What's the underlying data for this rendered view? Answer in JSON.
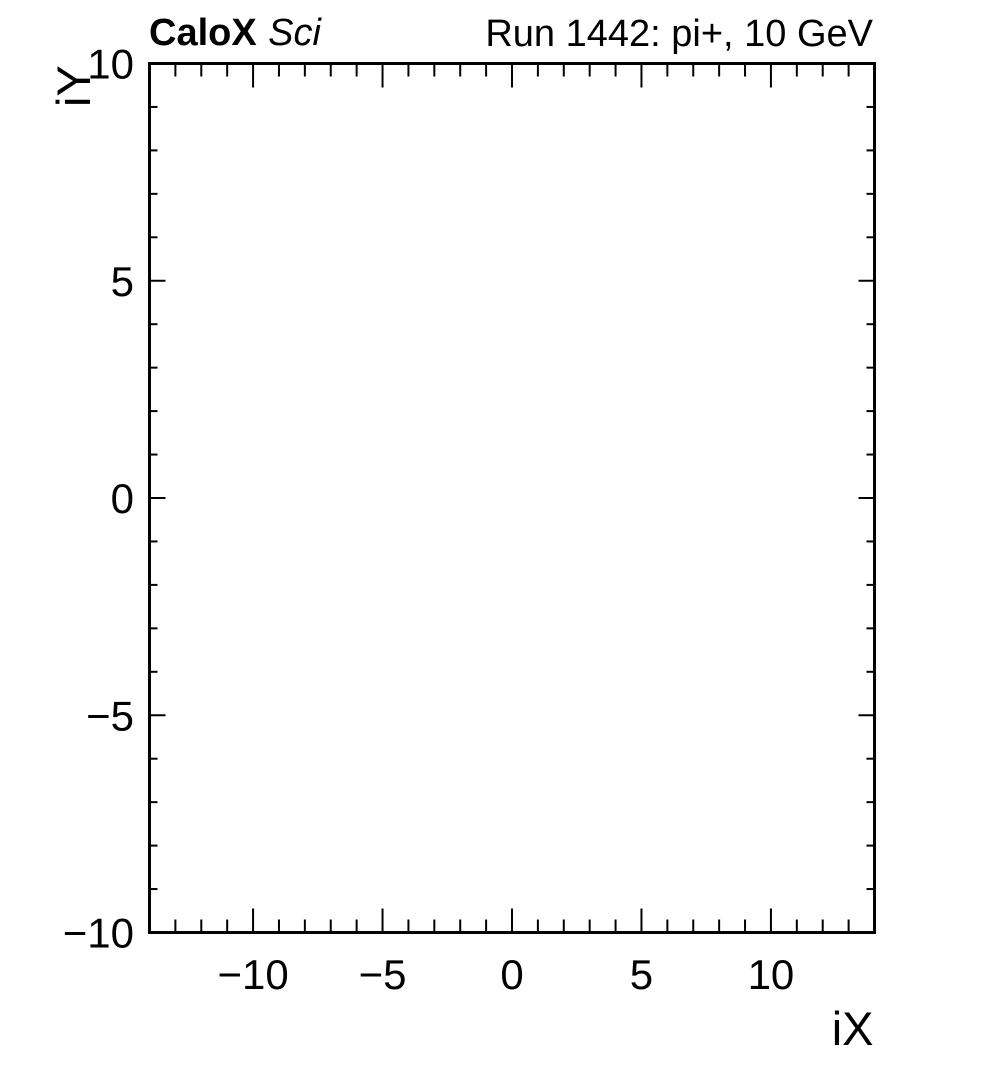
{
  "header": {
    "left_bold": "CaloX",
    "left_italic": "Sci",
    "right": "Run 1442: pi+, 10 GeV"
  },
  "chart_data": {
    "type": "heatmap",
    "title_left_bold": "CaloX",
    "title_left_italic": "Sci",
    "title_right": "Run 1442: pi+, 10 GeV",
    "xlabel": "iX",
    "ylabel": "iY",
    "xlim": [
      -14,
      14
    ],
    "ylim": [
      -10,
      10
    ],
    "x_major_ticks": [
      -10,
      -5,
      0,
      5,
      10
    ],
    "x_major_tick_labels": [
      "−10",
      "−5",
      "0",
      "5",
      "10"
    ],
    "x_minor_tick_step": 1,
    "y_major_ticks": [
      -10,
      -5,
      0,
      5,
      10
    ],
    "y_major_tick_labels": [
      "−10",
      "−5",
      "0",
      "5",
      "10"
    ],
    "y_minor_tick_step": 1,
    "ticks_mirrored_all_sides": true,
    "grid": false,
    "legend": false,
    "series": [],
    "values": [],
    "plot_area_empty": true,
    "frame_color": "#000000",
    "background_color": "#ffffff",
    "text_color": "#000000"
  }
}
